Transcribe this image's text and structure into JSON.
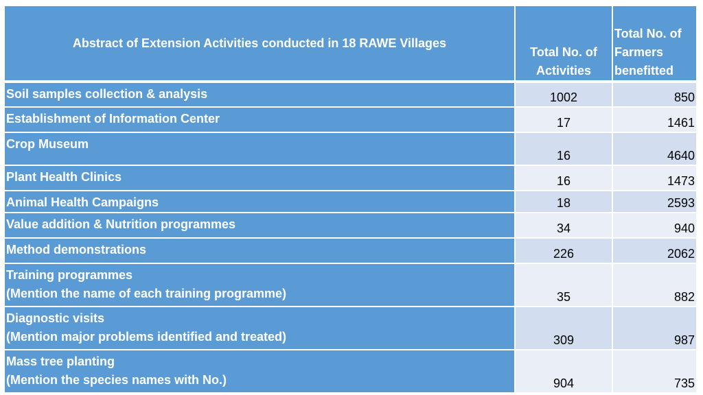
{
  "table": {
    "title": "Abstract of Extension Activities conducted in 18 RAWE Villages",
    "headers": {
      "activities": [
        "Total No. of",
        "Activities"
      ],
      "farmers": [
        "Total No. of",
        "Farmers",
        "benefitted"
      ]
    },
    "rows": [
      {
        "label": [
          "Soil samples collection & analysis"
        ],
        "activities": "1002",
        "farmers": "850"
      },
      {
        "label": [
          "Establishment of Information Center"
        ],
        "activities": "17",
        "farmers": "1461"
      },
      {
        "label": [
          "Crop Museum"
        ],
        "activities": "16",
        "farmers": "4640"
      },
      {
        "label": [
          "Plant Health Clinics"
        ],
        "activities": "16",
        "farmers": "1473"
      },
      {
        "label": [
          "Animal Health Campaigns"
        ],
        "activities": "18",
        "farmers": "2593"
      },
      {
        "label": [
          "Value addition & Nutrition programmes"
        ],
        "activities": "34",
        "farmers": "940"
      },
      {
        "label": [
          "Method demonstrations"
        ],
        "activities": "226",
        "farmers": "2062"
      },
      {
        "label": [
          "Training programmes",
          "(Mention the name of each training programme)"
        ],
        "activities": "35",
        "farmers": "882"
      },
      {
        "label": [
          "Diagnostic visits",
          "(Mention major problems identified and treated)"
        ],
        "activities": "309",
        "farmers": "987"
      },
      {
        "label": [
          "Mass tree planting",
          "(Mention the species names with No.)"
        ],
        "activities": "904",
        "farmers": "735"
      }
    ]
  }
}
